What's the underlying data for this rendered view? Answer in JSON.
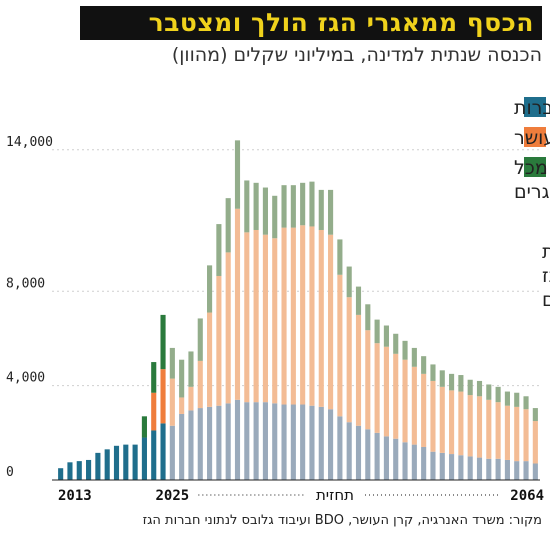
{
  "title": "הכסף ממאגרי הגז הולך ומצטבר",
  "subtitle": "הכנסה שנתית למדינה, במיליוני שקלים (מהוון)",
  "source": "מקור: משרד האנרגיה, קרן העושר, BDO ועיבוד גלובס לנתוני חברות הגז",
  "annotation": [
    "הירידה נובעת",
    "מהעובדה שהגז",
    "אוזל עם השנים"
  ],
  "forecast_label": "תחזית",
  "colors": {
    "corporate_tax": "#1f6e8c",
    "wealth_fund": "#ef7d3c",
    "royalties": "#2a7a3c",
    "corporate_tax_forecast": "#9aaabb",
    "wealth_fund_forecast": "#f3bc95",
    "royalties_forecast": "#93ad8b"
  },
  "chart_data": {
    "type": "bar",
    "stacked": true,
    "x": [
      2013,
      2014,
      2015,
      2016,
      2017,
      2018,
      2019,
      2020,
      2021,
      2022,
      2023,
      2024,
      2025,
      2026,
      2027,
      2028,
      2029,
      2030,
      2031,
      2032,
      2033,
      2034,
      2035,
      2036,
      2037,
      2038,
      2039,
      2040,
      2041,
      2042,
      2043,
      2044,
      2045,
      2046,
      2047,
      2048,
      2049,
      2050,
      2051,
      2052,
      2053,
      2054,
      2055,
      2056,
      2057,
      2058,
      2059,
      2060,
      2061,
      2062,
      2063,
      2064
    ],
    "tick_labels": [
      "2013",
      "2025",
      "2064"
    ],
    "yticks": [
      0,
      4000,
      8000,
      14000
    ],
    "ytick_labels": [
      "0",
      "4,000",
      "8,000",
      "14,000"
    ],
    "ylim": [
      0,
      14500
    ],
    "forecast_from": 2025,
    "series": [
      {
        "name": "מס חברות",
        "values": [
          500,
          750,
          800,
          850,
          1150,
          1300,
          1450,
          1500,
          1500,
          1800,
          2100,
          2400,
          2300,
          2800,
          2950,
          3050,
          3100,
          3150,
          3250,
          3400,
          3300,
          3300,
          3300,
          3250,
          3200,
          3200,
          3200,
          3150,
          3100,
          3000,
          2700,
          2450,
          2300,
          2150,
          2000,
          1850,
          1750,
          1600,
          1500,
          1400,
          1200,
          1150,
          1100,
          1050,
          1000,
          950,
          900,
          900,
          850,
          800,
          800,
          700
        ]
      },
      {
        "name": "קרן העושר",
        "values": [
          0,
          0,
          0,
          0,
          0,
          0,
          0,
          0,
          0,
          0,
          1600,
          2300,
          2000,
          700,
          1000,
          2000,
          4000,
          5500,
          6400,
          8100,
          7200,
          7300,
          7100,
          7000,
          7500,
          7500,
          7600,
          7600,
          7500,
          7400,
          6000,
          5300,
          4700,
          4200,
          3800,
          3800,
          3600,
          3500,
          3300,
          3100,
          3000,
          2800,
          2700,
          2700,
          2600,
          2600,
          2500,
          2400,
          2300,
          2300,
          2200,
          1800
        ]
      },
      {
        "name": "תמלוגים מכל המאגרים",
        "values": [
          0,
          0,
          0,
          0,
          0,
          0,
          0,
          0,
          0,
          900,
          1300,
          2300,
          1300,
          1600,
          1500,
          1800,
          2000,
          2200,
          2300,
          2900,
          2200,
          2000,
          2000,
          1800,
          1800,
          1800,
          1800,
          1900,
          1700,
          1900,
          1500,
          1300,
          1200,
          1100,
          1000,
          900,
          850,
          800,
          800,
          750,
          700,
          700,
          700,
          700,
          650,
          650,
          650,
          650,
          600,
          600,
          550,
          550
        ]
      }
    ]
  }
}
